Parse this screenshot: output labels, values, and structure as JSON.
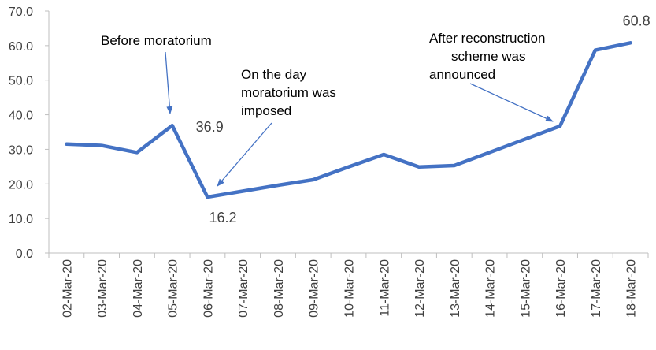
{
  "chart_data": {
    "type": "line",
    "title": "",
    "xlabel": "",
    "ylabel": "",
    "categories": [
      "02-Mar-20",
      "03-Mar-20",
      "04-Mar-20",
      "05-Mar-20",
      "06-Mar-20",
      "07-Mar-20",
      "08-Mar-20",
      "09-Mar-20",
      "10-Mar-20",
      "11-Mar-20",
      "12-Mar-20",
      "13-Mar-20",
      "14-Mar-20",
      "15-Mar-20",
      "16-Mar-20",
      "17-Mar-20",
      "18-Mar-20"
    ],
    "values": [
      31.5,
      31.1,
      29.1,
      36.9,
      16.2,
      17.9,
      19.6,
      21.2,
      24.9,
      28.5,
      24.9,
      25.3,
      29.1,
      32.9,
      36.7,
      58.7,
      60.8
    ],
    "ylim": [
      0,
      70
    ],
    "yticks": [
      "0.0",
      "10.0",
      "20.0",
      "30.0",
      "40.0",
      "50.0",
      "60.0",
      "70.0"
    ],
    "grid": false,
    "legend": "none",
    "line_color": "#4472C4",
    "arrow_color": "#4472C4",
    "data_labels": [
      {
        "index": 3,
        "text": "36.9"
      },
      {
        "index": 4,
        "text": "16.2"
      },
      {
        "index": 16,
        "text": "60.8"
      }
    ],
    "annotations": [
      {
        "lines": [
          "Before moratorium"
        ],
        "target_index": 3
      },
      {
        "lines": [
          "On the day",
          "moratorium was",
          "imposed"
        ],
        "target_index": 4
      },
      {
        "lines": [
          "After reconstruction",
          "scheme was",
          "announced"
        ],
        "target_index": 14
      }
    ]
  }
}
